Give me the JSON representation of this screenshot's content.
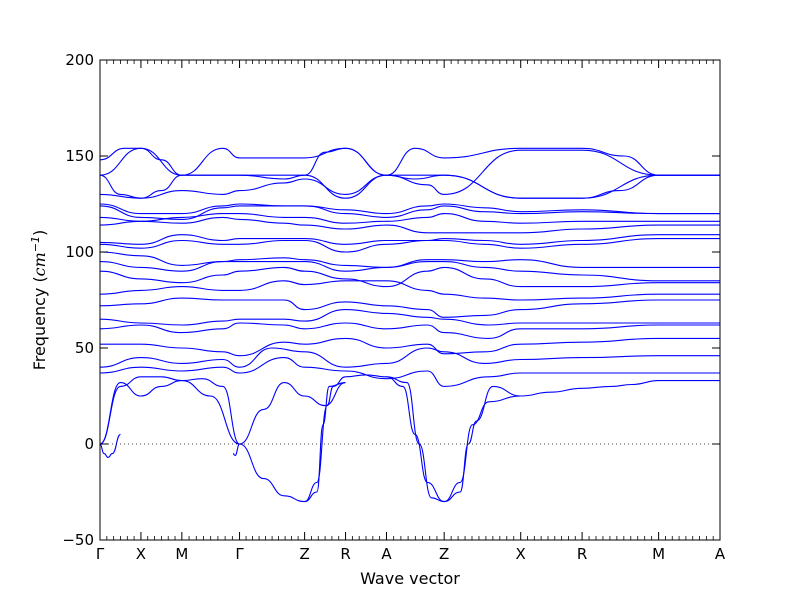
{
  "chart_data": {
    "type": "line",
    "title": "",
    "xlabel": "Wave vector",
    "ylabel": "Frequency (cm⁻¹)",
    "ylabel_main": "Frequency (",
    "ylabel_unit": "cm",
    "ylabel_exp": "−1",
    "ylabel_close": ")",
    "ylim": [
      -50,
      200
    ],
    "yticks": [
      -50,
      0,
      50,
      100,
      150,
      200
    ],
    "ytick_labels": [
      "−50",
      "0",
      "50",
      "100",
      "150",
      "200"
    ],
    "grid": false,
    "legend": "none",
    "zero_line": 0,
    "line_color": "#0000ff",
    "high_symmetry_points": [
      {
        "label": "Γ",
        "x": 0.0
      },
      {
        "label": "X",
        "x": 1.0
      },
      {
        "label": "M",
        "x": 2.0
      },
      {
        "label": "Γ",
        "x": 3.41
      },
      {
        "label": "Z",
        "x": 5.0
      },
      {
        "label": "R",
        "x": 6.0
      },
      {
        "label": "A",
        "x": 7.0
      },
      {
        "label": "Z",
        "x": 8.41
      },
      {
        "label": "X",
        "x": 10.28
      },
      {
        "label": "R",
        "x": 11.78
      },
      {
        "label": "M",
        "x": 13.65
      },
      {
        "label": "A",
        "x": 15.15
      }
    ],
    "series": [
      {
        "x": [
          0,
          0.5,
          1,
          1.5,
          2,
          2.7,
          3.41
        ],
        "y": [
          0,
          32,
          25,
          30,
          33,
          25,
          0
        ]
      },
      {
        "x": [
          0,
          0.1,
          0.2,
          0.3,
          0.5
        ],
        "y": [
          0,
          -5,
          -7,
          -5,
          5
        ]
      },
      {
        "x": [
          0,
          0.5,
          1,
          1.5,
          2,
          2.5,
          3,
          3.41
        ],
        "y": [
          0,
          30,
          35,
          35,
          33,
          34,
          30,
          0
        ]
      },
      {
        "x": [
          3.25,
          3.3,
          3.41
        ],
        "y": [
          -5,
          -6,
          0
        ]
      },
      {
        "x": [
          3.41,
          4.0,
          4.5,
          5.0
        ],
        "y": [
          0,
          -18,
          -27,
          -30
        ]
      },
      {
        "x": [
          3.41,
          4.0,
          4.5,
          5.0,
          5.5,
          6.0
        ],
        "y": [
          0,
          18,
          32,
          25,
          20,
          32
        ]
      },
      {
        "x": [
          5.0,
          5.3,
          5.45,
          5.6,
          6.0
        ],
        "y": [
          -30,
          -25,
          10,
          30,
          32
        ]
      },
      {
        "x": [
          5.0,
          5.3,
          5.55,
          5.7,
          6.0,
          6.5,
          7.0
        ],
        "y": [
          -30,
          -20,
          20,
          30,
          35,
          36,
          35
        ]
      },
      {
        "x": [
          7.0,
          7.4,
          7.7,
          8.0,
          8.41
        ],
        "y": [
          35,
          30,
          5,
          -20,
          -30
        ]
      },
      {
        "x": [
          7.0,
          7.5,
          7.8,
          8.1,
          8.41
        ],
        "y": [
          35,
          32,
          0,
          -28,
          -30
        ]
      },
      {
        "x": [
          8.41,
          8.8,
          9.0,
          9.2,
          9.6,
          10.28
        ],
        "y": [
          -30,
          -25,
          0,
          12,
          30,
          25
        ]
      },
      {
        "x": [
          8.41,
          8.8,
          9.1,
          9.5,
          10.28
        ],
        "y": [
          -30,
          -20,
          10,
          22,
          25
        ]
      },
      {
        "x": [
          10.28,
          11.0,
          11.78,
          12.5,
          13.0,
          13.65,
          15.15
        ],
        "y": [
          25,
          27,
          29,
          30,
          31,
          33,
          33
        ]
      },
      {
        "x": [
          0,
          1,
          2,
          3,
          3.41,
          4.5,
          5.0,
          6.0,
          7.0,
          8.0,
          8.41,
          9.5,
          10.28,
          11.78,
          13.65,
          15.15
        ],
        "y": [
          37,
          40,
          38,
          40,
          37,
          45,
          40,
          38,
          34,
          38,
          30,
          35,
          37,
          37,
          37,
          37
        ]
      },
      {
        "x": [
          0,
          1,
          2,
          3,
          3.41,
          4.2,
          5.0,
          6.0,
          7.0,
          8.0,
          8.41,
          9.4,
          10.28,
          11.78,
          13.65,
          15.15
        ],
        "y": [
          40,
          45,
          42,
          44,
          40,
          50,
          48,
          40,
          42,
          50,
          48,
          42,
          44,
          45,
          46,
          46
        ]
      },
      {
        "x": [
          0,
          1,
          2,
          3,
          3.41,
          4.5,
          5.0,
          6.0,
          7.0,
          8.0,
          8.41,
          9.4,
          10.28,
          11.78,
          13.65,
          15.15
        ],
        "y": [
          52,
          52,
          50,
          48,
          46,
          53,
          52,
          55,
          50,
          52,
          47,
          48,
          52,
          53,
          55,
          55
        ]
      },
      {
        "x": [
          0,
          1,
          2,
          3,
          3.41,
          4.5,
          5.0,
          6.0,
          7.0,
          8.0,
          8.41,
          9.5,
          10.28,
          11.78,
          13.65,
          15.15
        ],
        "y": [
          60,
          62,
          58,
          60,
          63,
          62,
          60,
          63,
          60,
          62,
          58,
          55,
          60,
          60,
          62,
          62
        ]
      },
      {
        "x": [
          0,
          1,
          2,
          3,
          3.41,
          4.5,
          5.0,
          6.0,
          7.0,
          8.0,
          8.41,
          9.5,
          10.28,
          11.78,
          13.65,
          15.15
        ],
        "y": [
          65,
          63,
          62,
          64,
          65,
          65,
          64,
          70,
          68,
          66,
          65,
          62,
          63,
          63,
          63,
          63
        ]
      },
      {
        "x": [
          0,
          1,
          2,
          3,
          3.41,
          4.5,
          5.0,
          6.0,
          7.0,
          8.0,
          8.41,
          9.4,
          10.28,
          11.78,
          13.65,
          15.15
        ],
        "y": [
          72,
          73,
          76,
          75,
          75,
          75,
          70,
          74,
          72,
          70,
          66,
          67,
          70,
          73,
          75,
          75
        ]
      },
      {
        "x": [
          0,
          1,
          2,
          3,
          3.41,
          4.5,
          5.0,
          6.0,
          7.0,
          8.0,
          8.41,
          9.4,
          10.28,
          11.78,
          13.65,
          15.15
        ],
        "y": [
          78,
          80,
          82,
          80,
          80,
          85,
          83,
          85,
          85,
          80,
          78,
          76,
          75,
          76,
          78,
          78
        ]
      },
      {
        "x": [
          0,
          1,
          2,
          3,
          3.41,
          4.5,
          5.0,
          6.0,
          7.0,
          8.0,
          8.41,
          9.4,
          10.28,
          11.78,
          13.65,
          15.15
        ],
        "y": [
          90,
          86,
          84,
          88,
          90,
          92,
          90,
          86,
          82,
          90,
          92,
          86,
          82,
          82,
          84,
          84
        ]
      },
      {
        "x": [
          0,
          1,
          2,
          3,
          3.41,
          4.5,
          5.0,
          6.0,
          7.0,
          8.0,
          8.41,
          9.4,
          10.28,
          11.78,
          13.65,
          15.15
        ],
        "y": [
          95,
          92,
          90,
          95,
          95,
          95,
          95,
          90,
          92,
          95,
          95,
          92,
          90,
          88,
          85,
          85
        ]
      },
      {
        "x": [
          0,
          1,
          2,
          3,
          3.41,
          4.5,
          5.0,
          6.0,
          7.0,
          8.0,
          8.41,
          9.4,
          10.28,
          11.78,
          13.65,
          15.15
        ],
        "y": [
          100,
          98,
          93,
          95,
          96,
          97,
          96,
          93,
          92,
          96,
          96,
          95,
          96,
          92,
          92,
          92
        ]
      },
      {
        "x": [
          0,
          1,
          2,
          3,
          3.41,
          4.5,
          5.0,
          6.0,
          7.0,
          8.0,
          8.41,
          9.4,
          10.28,
          11.78,
          13.65,
          15.15
        ],
        "y": [
          104,
          102,
          106,
          104,
          104,
          106,
          106,
          100,
          104,
          106,
          106,
          104,
          102,
          104,
          107,
          107
        ]
      },
      {
        "x": [
          0,
          1,
          2,
          3,
          3.41,
          4.5,
          5.0,
          6.0,
          7.0,
          8.0,
          8.41,
          9.4,
          10.28,
          11.78,
          13.65,
          15.15
        ],
        "y": [
          105,
          104,
          109,
          106,
          107,
          107,
          107,
          104,
          106,
          106,
          107,
          106,
          104,
          106,
          109,
          109
        ]
      },
      {
        "x": [
          0,
          1,
          2,
          3,
          3.41,
          4.5,
          5.0,
          6.0,
          7.0,
          8.0,
          8.41,
          9.4,
          10.28,
          11.78,
          13.65,
          15.15
        ],
        "y": [
          114,
          116,
          115,
          118,
          117,
          115,
          114,
          112,
          114,
          110,
          110,
          110,
          110,
          112,
          114,
          114
        ]
      },
      {
        "x": [
          0,
          1,
          2,
          3,
          3.41,
          4.5,
          5.0,
          6.0,
          7.0,
          8.0,
          8.41,
          9.4,
          10.28,
          11.78,
          13.65,
          15.15
        ],
        "y": [
          118,
          116,
          118,
          120,
          120,
          118,
          118,
          115,
          116,
          118,
          120,
          116,
          115,
          116,
          116,
          116
        ]
      },
      {
        "x": [
          0,
          1,
          2,
          3,
          3.41,
          4.5,
          5.0,
          6.0,
          7.0,
          8.0,
          8.41,
          9.4,
          10.28,
          11.78,
          13.65,
          15.15
        ],
        "y": [
          125,
          120,
          120,
          124,
          125,
          124,
          124,
          120,
          118,
          122,
          124,
          121,
          120,
          121,
          120,
          120
        ]
      },
      {
        "x": [
          0,
          1,
          2,
          3,
          3.41,
          4.5,
          5.0,
          6.0,
          7.0,
          8.0,
          8.41,
          9.4,
          10.28,
          11.78,
          13.65,
          15.15
        ],
        "y": [
          124,
          118,
          117,
          123,
          124,
          124,
          124,
          122,
          120,
          124,
          125,
          123,
          121,
          122,
          120,
          120
        ]
      },
      {
        "x": [
          0,
          1,
          2,
          3,
          3.41,
          4.5,
          5.0,
          6.0,
          7.0,
          7.7,
          8.41,
          10.28,
          11.78,
          12.7,
          13.65,
          15.15
        ],
        "y": [
          130,
          128,
          132,
          130,
          132,
          136,
          138,
          130,
          140,
          138,
          140,
          128,
          128,
          132,
          140,
          140
        ]
      },
      {
        "x": [
          0,
          0.5,
          1,
          1.5,
          2,
          3,
          3.41,
          4.5,
          5.0,
          6.0,
          7.0,
          8.0,
          8.41,
          10.28,
          11.78,
          13.65,
          15.15
        ],
        "y": [
          140,
          130,
          128,
          132,
          140,
          140,
          140,
          140,
          140,
          128,
          140,
          140,
          140,
          128,
          128,
          140,
          140
        ]
      },
      {
        "x": [
          0,
          0.6,
          1,
          1.5,
          2,
          3,
          3.41,
          4.5,
          5.0,
          6.0,
          7.0,
          7.7,
          8.41,
          10.28,
          11.78,
          12.8,
          13.65,
          15.15
        ],
        "y": [
          148,
          154,
          154,
          148,
          140,
          154,
          149,
          149,
          149,
          154,
          140,
          154,
          149,
          154,
          154,
          150,
          140,
          140
        ]
      },
      {
        "x": [
          0,
          1,
          2,
          3,
          3.41,
          4.5,
          5.0,
          5.5,
          6.0,
          7.0,
          8.0,
          8.41,
          10.28,
          11.78,
          13.65,
          15.15
        ],
        "y": [
          140,
          154,
          140,
          140,
          140,
          138,
          140,
          152,
          154,
          140,
          135,
          130,
          153,
          153,
          140,
          140
        ]
      }
    ]
  }
}
